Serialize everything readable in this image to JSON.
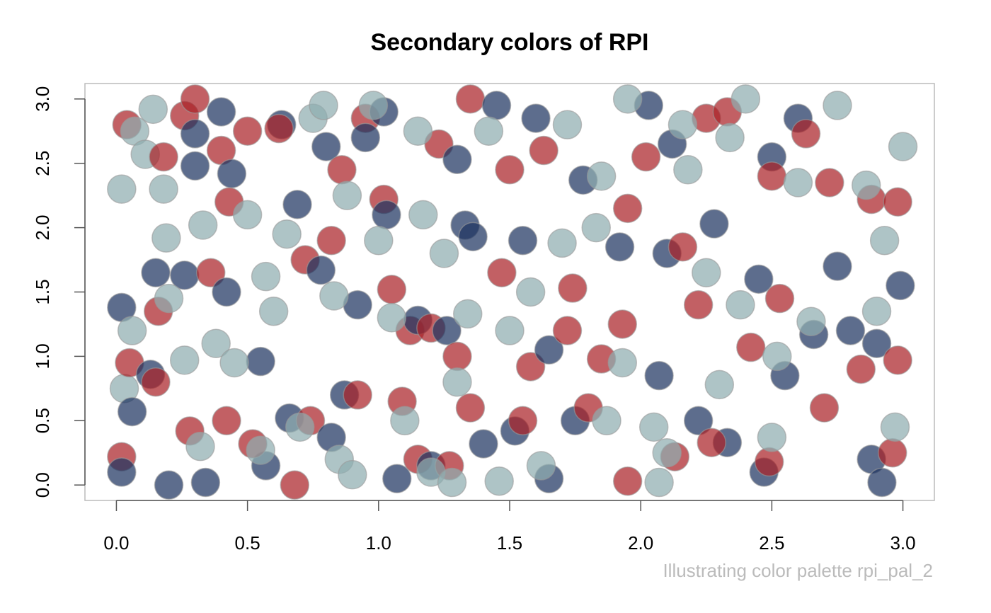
{
  "chart_data": {
    "type": "scatter",
    "title": "Secondary colors of RPI",
    "subtitle": "Illustrating color palette rpi_pal_2",
    "xlim": [
      -0.12,
      3.12
    ],
    "ylim": [
      -0.12,
      3.12
    ],
    "xticks": [
      {
        "value": 0,
        "label": "0.0"
      },
      0.5,
      {
        "value": 1,
        "label": "1.0"
      },
      1.5,
      {
        "value": 2,
        "label": "2.0"
      },
      2.5,
      {
        "value": 3,
        "label": "3.0"
      }
    ],
    "yticks": [
      {
        "value": 0,
        "label": "0.0"
      },
      0.5,
      {
        "value": 1,
        "label": "1.0"
      },
      1.5,
      {
        "value": 2,
        "label": "2.0"
      },
      2.5,
      {
        "value": 3,
        "label": "3.0"
      }
    ],
    "series": [
      {
        "color": "#1f3461",
        "x": [
          0.02,
          0.02,
          0.06,
          0.13,
          0.15,
          0.2,
          0.26,
          0.3,
          0.3,
          0.34,
          0.4,
          0.42,
          0.44,
          0.55,
          0.57,
          0.63,
          0.66,
          0.69,
          0.78,
          0.8,
          0.82,
          0.87,
          0.92,
          0.95,
          1.02,
          1.03,
          1.07,
          1.15,
          1.2,
          1.26,
          1.3,
          1.33,
          1.36,
          1.4,
          1.45,
          1.52,
          1.55,
          1.6,
          1.65,
          1.65,
          1.75,
          1.78,
          1.92,
          2.03,
          2.07,
          2.1,
          2.12,
          2.22,
          2.28,
          2.33,
          2.45,
          2.47,
          2.5,
          2.55,
          2.6,
          2.66,
          2.75,
          2.8,
          2.88,
          2.9,
          2.92,
          2.99
        ],
        "values": [
          1.38,
          0.1,
          0.57,
          0.86,
          1.65,
          0.0,
          1.63,
          2.73,
          2.48,
          0.02,
          2.9,
          1.5,
          2.42,
          0.96,
          0.15,
          2.8,
          0.52,
          2.18,
          1.67,
          2.63,
          0.37,
          0.7,
          1.4,
          2.7,
          2.9,
          2.1,
          0.05,
          1.28,
          0.15,
          1.2,
          2.53,
          2.02,
          1.93,
          0.32,
          2.95,
          0.42,
          1.9,
          2.85,
          1.05,
          0.05,
          0.5,
          2.37,
          1.85,
          2.95,
          0.85,
          1.8,
          2.65,
          0.5,
          2.03,
          0.33,
          1.6,
          0.1,
          2.55,
          0.85,
          2.85,
          1.17,
          1.7,
          1.2,
          0.2,
          1.1,
          0.02,
          1.55
        ]
      },
      {
        "color": "#ab2328",
        "x": [
          0.02,
          0.04,
          0.05,
          0.15,
          0.16,
          0.18,
          0.26,
          0.28,
          0.3,
          0.36,
          0.4,
          0.42,
          0.43,
          0.5,
          0.52,
          0.62,
          0.68,
          0.72,
          0.74,
          0.82,
          0.86,
          0.92,
          0.95,
          1.02,
          1.05,
          1.09,
          1.12,
          1.15,
          1.2,
          1.23,
          1.27,
          1.3,
          1.35,
          1.35,
          1.47,
          1.5,
          1.55,
          1.58,
          1.63,
          1.72,
          1.74,
          1.8,
          1.85,
          1.93,
          1.95,
          1.95,
          2.02,
          2.13,
          2.16,
          2.22,
          2.25,
          2.27,
          2.33,
          2.42,
          2.5,
          2.49,
          2.53,
          2.63,
          2.7,
          2.72,
          2.84,
          2.88,
          2.98,
          2.98,
          2.96
        ],
        "values": [
          0.22,
          2.8,
          0.95,
          0.8,
          1.35,
          2.55,
          2.87,
          0.42,
          3.0,
          1.65,
          2.6,
          0.5,
          2.2,
          2.75,
          0.32,
          2.77,
          0.0,
          1.75,
          0.5,
          1.9,
          2.45,
          0.7,
          2.85,
          2.22,
          1.52,
          0.65,
          1.2,
          0.2,
          1.22,
          2.65,
          0.15,
          1.0,
          3.0,
          0.6,
          1.65,
          2.45,
          0.5,
          0.92,
          2.6,
          1.2,
          1.53,
          0.6,
          0.98,
          1.25,
          0.03,
          2.15,
          2.55,
          0.22,
          1.85,
          1.4,
          2.85,
          0.33,
          2.9,
          1.07,
          2.4,
          0.18,
          1.45,
          2.73,
          0.6,
          2.35,
          0.9,
          2.22,
          0.97,
          2.2,
          0.25
        ]
      },
      {
        "color": "#8fadb0",
        "x": [
          0.02,
          0.03,
          0.06,
          0.07,
          0.11,
          0.14,
          0.18,
          0.19,
          0.2,
          0.26,
          0.32,
          0.33,
          0.38,
          0.45,
          0.5,
          0.55,
          0.57,
          0.6,
          0.65,
          0.7,
          0.75,
          0.79,
          0.83,
          0.85,
          0.88,
          0.9,
          0.98,
          1.0,
          1.05,
          1.1,
          1.15,
          1.17,
          1.2,
          1.25,
          1.28,
          1.3,
          1.34,
          1.42,
          1.46,
          1.5,
          1.58,
          1.62,
          1.7,
          1.72,
          1.83,
          1.85,
          1.87,
          1.95,
          1.93,
          2.05,
          2.07,
          2.1,
          2.16,
          2.18,
          2.25,
          2.3,
          2.34,
          2.38,
          2.4,
          2.5,
          2.52,
          2.6,
          2.65,
          2.75,
          2.86,
          2.9,
          2.93,
          2.97,
          3.0
        ],
        "values": [
          2.3,
          0.75,
          1.2,
          2.75,
          2.57,
          2.92,
          2.3,
          1.92,
          1.45,
          0.97,
          0.3,
          2.02,
          1.1,
          0.95,
          2.1,
          0.27,
          1.62,
          1.35,
          1.95,
          0.45,
          2.85,
          2.95,
          1.47,
          0.2,
          2.25,
          0.08,
          2.95,
          1.9,
          1.3,
          0.5,
          2.75,
          2.1,
          0.1,
          1.8,
          0.02,
          0.8,
          1.33,
          2.75,
          0.03,
          1.2,
          1.5,
          0.15,
          1.88,
          2.8,
          2.0,
          2.4,
          0.5,
          3.0,
          0.95,
          0.45,
          0.02,
          0.25,
          2.8,
          2.45,
          1.65,
          0.78,
          2.7,
          1.4,
          3.0,
          0.37,
          1.0,
          2.35,
          1.27,
          2.95,
          2.33,
          1.35,
          1.9,
          0.45,
          2.63
        ]
      }
    ]
  }
}
